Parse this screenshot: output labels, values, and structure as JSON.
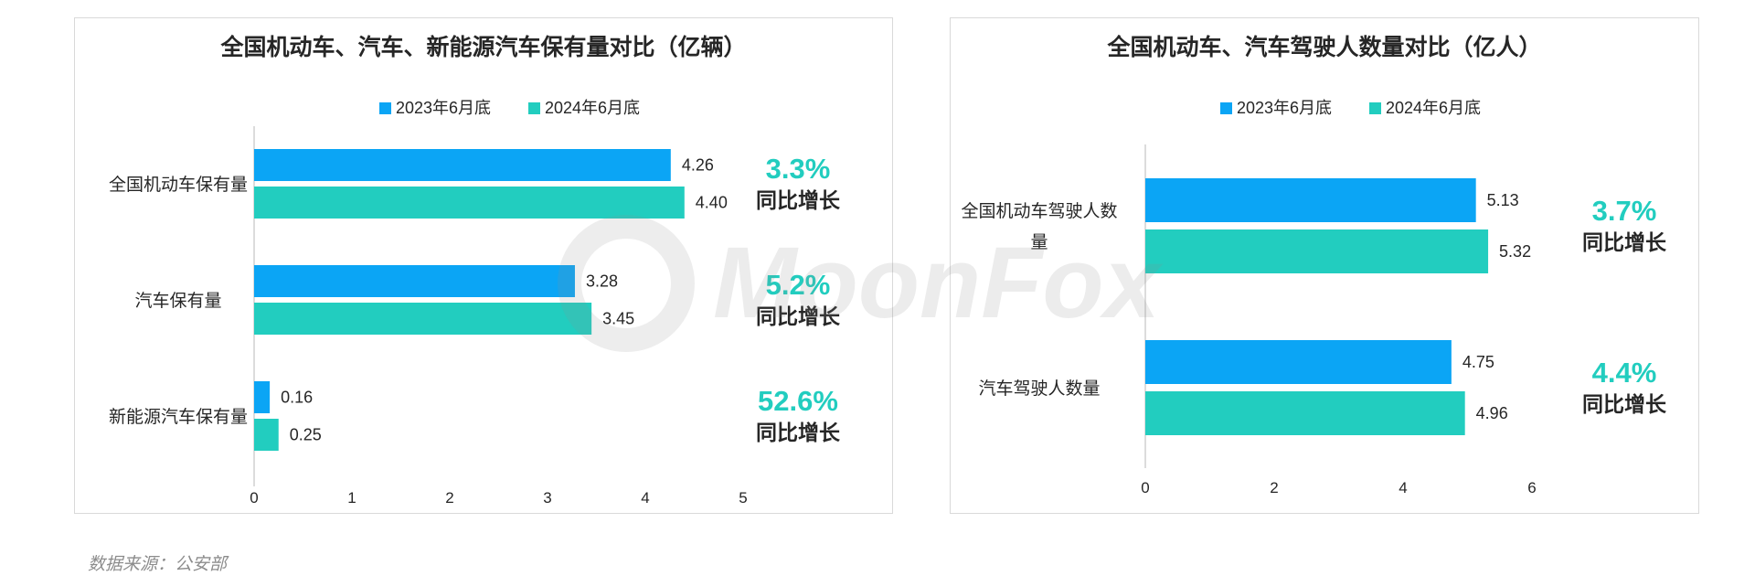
{
  "colors": {
    "series_2023": "#0ba5f5",
    "series_2024": "#22cdbf",
    "growth": "#22cdbf",
    "text": "#262626",
    "axis": "#d0d0d0"
  },
  "watermark": "MoonFox",
  "source_note": "数据来源：公安部",
  "growth_caption": "同比增长",
  "chart_data": [
    {
      "type": "bar",
      "orientation": "horizontal",
      "title": "全国机动车、汽车、新能源汽车保有量对比（亿辆）",
      "categories": [
        "全国机动车保有量",
        "汽车保有量",
        "新能源汽车保有量"
      ],
      "series": [
        {
          "name": "2023年6月底",
          "values": [
            4.26,
            3.28,
            0.16
          ]
        },
        {
          "name": "2024年6月底",
          "values": [
            4.4,
            3.45,
            0.25
          ]
        }
      ],
      "value_labels": [
        [
          "4.26",
          "3.28",
          "0.16"
        ],
        [
          "4.40",
          "3.45",
          "0.25"
        ]
      ],
      "growth": [
        "3.3%",
        "5.2%",
        "52.6%"
      ],
      "xlim": [
        0,
        5
      ],
      "xticks": [
        "0",
        "1",
        "2",
        "3",
        "4",
        "5"
      ],
      "legend": "top-center",
      "grid": false
    },
    {
      "type": "bar",
      "orientation": "horizontal",
      "title": "全国机动车、汽车驾驶人数量对比（亿人）",
      "categories": [
        "全国机动车驾驶人数量",
        "汽车驾驶人数量"
      ],
      "category_lines": [
        [
          "全国机动车驾驶人数",
          "量"
        ],
        [
          "汽车驾驶人数量"
        ]
      ],
      "series": [
        {
          "name": "2023年6月底",
          "values": [
            5.13,
            4.75
          ]
        },
        {
          "name": "2024年6月底",
          "values": [
            5.32,
            4.96
          ]
        }
      ],
      "value_labels": [
        [
          "5.13",
          "4.75"
        ],
        [
          "5.32",
          "4.96"
        ]
      ],
      "growth": [
        "3.7%",
        "4.4%"
      ],
      "xlim": [
        0,
        6
      ],
      "xticks": [
        "0",
        "2",
        "4",
        "6"
      ],
      "legend": "top-center",
      "grid": false
    }
  ]
}
